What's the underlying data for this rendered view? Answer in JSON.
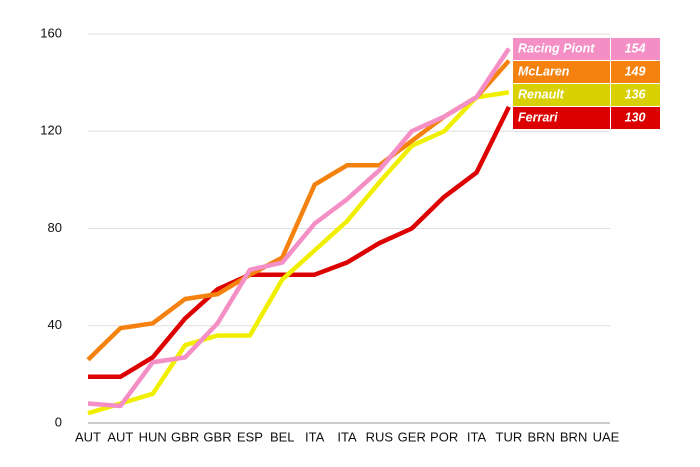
{
  "chart_data": {
    "type": "line",
    "categories": [
      "AUT",
      "AUT",
      "HUN",
      "GBR",
      "GBR",
      "ESP",
      "BEL",
      "ITA",
      "ITA",
      "RUS",
      "GER",
      "POR",
      "ITA",
      "TUR",
      "BRN",
      "BRN",
      "UAE"
    ],
    "series": [
      {
        "name": "Racing Piont",
        "color": "#f48fc6",
        "values": [
          8,
          7,
          25,
          27,
          41,
          63,
          66,
          82,
          92,
          104,
          120,
          126,
          134,
          154,
          null,
          null,
          null
        ]
      },
      {
        "name": "McLaren",
        "color": "#f5820f",
        "values": [
          26,
          39,
          41,
          51,
          53,
          61,
          68,
          98,
          106,
          106,
          116,
          126,
          134,
          149,
          null,
          null,
          null
        ]
      },
      {
        "name": "Renault",
        "color": "#f0ef00",
        "values": [
          4,
          8,
          12,
          32,
          36,
          36,
          59,
          71,
          83,
          99,
          114,
          120,
          134,
          136,
          null,
          null,
          null
        ]
      },
      {
        "name": "Ferrari",
        "color": "#dd0000",
        "values": [
          19,
          19,
          27,
          43,
          55,
          61,
          61,
          61,
          66,
          74,
          80,
          93,
          103,
          130,
          null,
          null,
          null
        ]
      }
    ],
    "ylim": [
      0,
      160
    ],
    "yticks": [
      0,
      40,
      80,
      120,
      160
    ],
    "grid": true
  }
}
